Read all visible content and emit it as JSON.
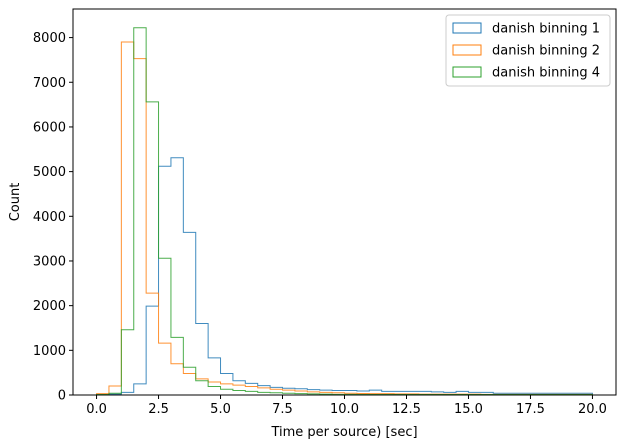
{
  "chart_data": {
    "type": "histogram",
    "title": "",
    "xlabel": "Time per source) [sec]",
    "ylabel": "Count",
    "xlim": [
      -0.95,
      20.95
    ],
    "ylim": [
      0,
      8640
    ],
    "xticks": [
      0,
      2.5,
      5,
      7.5,
      10,
      12.5,
      15,
      17.5,
      20
    ],
    "xtick_labels": [
      "0.0",
      "2.5",
      "5.0",
      "7.5",
      "10.0",
      "12.5",
      "15.0",
      "17.5",
      "20.0"
    ],
    "yticks": [
      0,
      1000,
      2000,
      3000,
      4000,
      5000,
      6000,
      7000,
      8000
    ],
    "ytick_labels": [
      "0",
      "1000",
      "2000",
      "3000",
      "4000",
      "5000",
      "6000",
      "7000",
      "8000"
    ],
    "bin_edges": [
      0.0,
      0.5,
      1.0,
      1.5,
      2.0,
      2.5,
      3.0,
      3.5,
      4.0,
      4.5,
      5.0,
      5.5,
      6.0,
      6.5,
      7.0,
      7.5,
      8.0,
      8.5,
      9.0,
      9.5,
      10.0,
      10.5,
      11.0,
      11.5,
      12.0,
      12.5,
      13.0,
      13.5,
      14.0,
      14.5,
      15.0,
      15.5,
      16.0,
      16.5,
      17.0,
      17.5,
      18.0,
      18.5,
      19.0,
      19.5,
      20.0
    ],
    "legend_position": "top-right",
    "series": [
      {
        "name": "danish binning 1",
        "color": "#1f77b4",
        "values": [
          0,
          20,
          60,
          250,
          1990,
          5120,
          5310,
          3640,
          1600,
          830,
          480,
          320,
          260,
          210,
          170,
          150,
          140,
          120,
          110,
          100,
          100,
          90,
          110,
          80,
          80,
          80,
          80,
          70,
          60,
          80,
          60,
          60,
          40,
          40,
          40,
          40,
          40,
          40,
          40,
          40
        ]
      },
      {
        "name": "danish binning 2",
        "color": "#ff7f0e",
        "values": [
          30,
          200,
          7900,
          7530,
          2280,
          1160,
          700,
          480,
          360,
          290,
          250,
          220,
          190,
          160,
          130,
          110,
          90,
          70,
          60,
          50,
          40,
          35,
          30,
          30,
          25,
          25,
          20,
          20,
          20,
          20,
          20,
          15,
          15,
          15,
          15,
          15,
          15,
          15,
          15,
          15
        ]
      },
      {
        "name": "danish binning 4",
        "color": "#2ca02c",
        "values": [
          10,
          40,
          1460,
          8220,
          6560,
          3060,
          1290,
          620,
          320,
          190,
          130,
          100,
          80,
          60,
          50,
          40,
          30,
          25,
          20,
          15,
          15,
          10,
          10,
          10,
          10,
          10,
          10,
          10,
          10,
          10,
          10,
          10,
          10,
          10,
          10,
          10,
          10,
          10,
          10,
          10
        ]
      }
    ]
  }
}
